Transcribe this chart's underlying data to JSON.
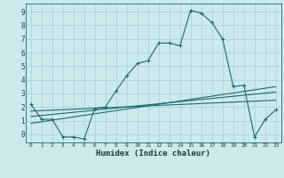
{
  "xlabel": "Humidex (Indice chaleur)",
  "bg_color": "#cce9ec",
  "grid_color": "#afd4d8",
  "line_color": "#1a6b6b",
  "xlim": [
    -0.5,
    23.5
  ],
  "ylim": [
    -0.6,
    9.6
  ],
  "xticks": [
    0,
    1,
    2,
    3,
    4,
    5,
    6,
    7,
    8,
    9,
    10,
    11,
    12,
    13,
    14,
    15,
    16,
    17,
    18,
    19,
    20,
    21,
    22,
    23
  ],
  "yticks": [
    0,
    1,
    2,
    3,
    4,
    5,
    6,
    7,
    8,
    9
  ],
  "line1_x": [
    0,
    1,
    2,
    3,
    4,
    5,
    6,
    7,
    8,
    9,
    10,
    11,
    12,
    13,
    14,
    15,
    16,
    17,
    18,
    19,
    20,
    21,
    22,
    23
  ],
  "line1_y": [
    2.2,
    1.1,
    1.1,
    -0.2,
    -0.2,
    -0.35,
    1.9,
    2.0,
    3.2,
    4.3,
    5.2,
    5.4,
    6.7,
    6.7,
    6.5,
    9.1,
    8.9,
    8.2,
    7.0,
    3.5,
    3.6,
    -0.2,
    1.1,
    1.8
  ],
  "line2_x": [
    0,
    23
  ],
  "line2_y": [
    0.8,
    3.5
  ],
  "line3_x": [
    0,
    23
  ],
  "line3_y": [
    1.3,
    3.1
  ],
  "line4_x": [
    0,
    23
  ],
  "line4_y": [
    1.7,
    2.5
  ]
}
